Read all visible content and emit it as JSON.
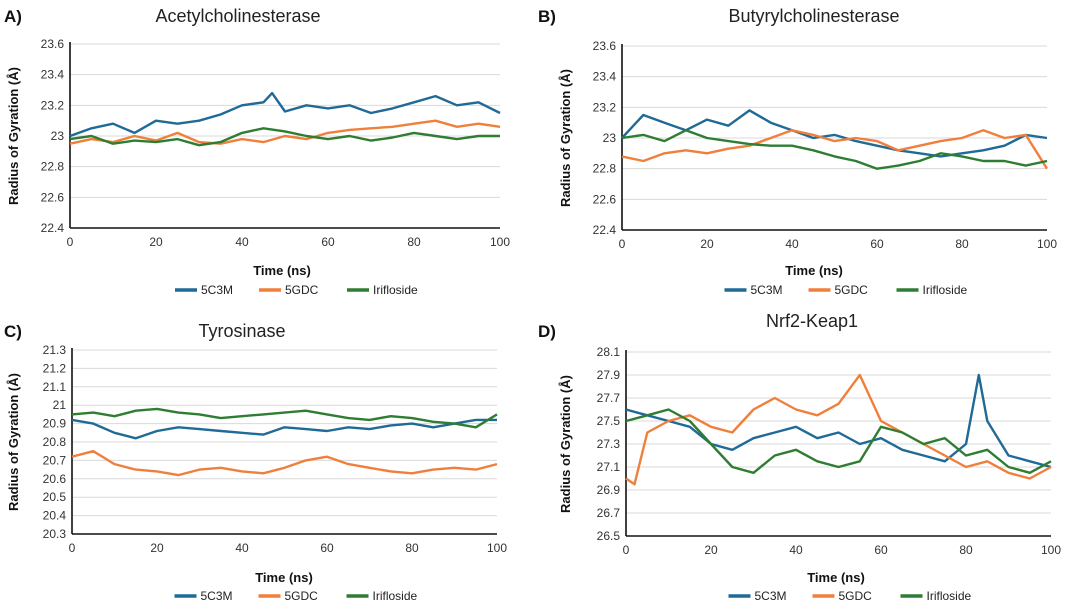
{
  "colors": {
    "s5C3M": "#1f6a96",
    "s5GDC": "#f07f3c",
    "Irifloside": "#2e7d32"
  },
  "chart_data": [
    {
      "type": "line",
      "panel": "A)",
      "title": "Acetylcholinesterase",
      "xlabel": "Time (ns)",
      "ylabel": "Radius of Gyration (Å)",
      "xlim": [
        0,
        100
      ],
      "ylim": [
        22.4,
        23.6
      ],
      "xticks": [
        "0",
        "20",
        "40",
        "60",
        "80",
        "100"
      ],
      "yticks": [
        "22.4",
        "22.6",
        "22.8",
        "23",
        "23.2",
        "23.4",
        "23.6"
      ],
      "grid": true,
      "legend": "bottom-center",
      "series": [
        {
          "name": "5C3M",
          "key": "s5C3M",
          "x": [
            0,
            5,
            10,
            15,
            20,
            25,
            30,
            35,
            40,
            45,
            47,
            50,
            55,
            60,
            65,
            70,
            75,
            80,
            85,
            90,
            95,
            100
          ],
          "values": [
            23.0,
            23.05,
            23.08,
            23.02,
            23.1,
            23.08,
            23.1,
            23.14,
            23.2,
            23.22,
            23.28,
            23.16,
            23.2,
            23.18,
            23.2,
            23.15,
            23.18,
            23.22,
            23.26,
            23.2,
            23.22,
            23.15
          ]
        },
        {
          "name": "5GDC",
          "key": "s5GDC",
          "x": [
            0,
            5,
            10,
            15,
            20,
            25,
            30,
            35,
            40,
            45,
            50,
            55,
            60,
            65,
            70,
            75,
            80,
            85,
            90,
            95,
            100
          ],
          "values": [
            22.95,
            22.98,
            22.96,
            23.0,
            22.97,
            23.02,
            22.96,
            22.95,
            22.98,
            22.96,
            23.0,
            22.98,
            23.02,
            23.04,
            23.05,
            23.06,
            23.08,
            23.1,
            23.06,
            23.08,
            23.06
          ]
        },
        {
          "name": "Irifloside",
          "key": "Irifloside",
          "x": [
            0,
            5,
            10,
            15,
            20,
            25,
            30,
            35,
            40,
            45,
            50,
            55,
            60,
            65,
            70,
            75,
            80,
            85,
            90,
            95,
            100
          ],
          "values": [
            22.98,
            23.0,
            22.95,
            22.97,
            22.96,
            22.98,
            22.94,
            22.96,
            23.02,
            23.05,
            23.03,
            23.0,
            22.98,
            23.0,
            22.97,
            22.99,
            23.02,
            23.0,
            22.98,
            23.0,
            23.0
          ]
        }
      ]
    },
    {
      "type": "line",
      "panel": "B)",
      "title": "Butyrylcholinesterase",
      "xlabel": "Time (ns)",
      "ylabel": "Radius of Gyration (Å)",
      "xlim": [
        0,
        100
      ],
      "ylim": [
        22.4,
        23.6
      ],
      "xticks": [
        "0",
        "20",
        "40",
        "60",
        "80",
        "100"
      ],
      "yticks": [
        "22.4",
        "22.6",
        "22.8",
        "23",
        "23.2",
        "23.4",
        "23.6"
      ],
      "grid": true,
      "legend": "bottom-center",
      "series": [
        {
          "name": "5C3M",
          "key": "s5C3M",
          "x": [
            0,
            5,
            10,
            15,
            20,
            25,
            30,
            35,
            40,
            45,
            50,
            55,
            60,
            65,
            70,
            75,
            80,
            85,
            90,
            95,
            100
          ],
          "values": [
            23.0,
            23.15,
            23.1,
            23.05,
            23.12,
            23.08,
            23.18,
            23.1,
            23.05,
            23.0,
            23.02,
            22.98,
            22.95,
            22.92,
            22.9,
            22.88,
            22.9,
            22.92,
            22.95,
            23.02,
            23.0
          ]
        },
        {
          "name": "5GDC",
          "key": "s5GDC",
          "x": [
            0,
            5,
            10,
            15,
            20,
            25,
            30,
            35,
            40,
            45,
            50,
            55,
            60,
            65,
            70,
            75,
            80,
            85,
            90,
            95,
            100
          ],
          "values": [
            22.88,
            22.85,
            22.9,
            22.92,
            22.9,
            22.93,
            22.95,
            23.0,
            23.05,
            23.02,
            22.98,
            23.0,
            22.98,
            22.92,
            22.95,
            22.98,
            23.0,
            23.05,
            23.0,
            23.02,
            22.8
          ]
        },
        {
          "name": "Irifloside",
          "key": "Irifloside",
          "x": [
            0,
            5,
            10,
            15,
            20,
            25,
            30,
            35,
            40,
            45,
            50,
            55,
            60,
            65,
            70,
            75,
            80,
            85,
            90,
            95,
            100
          ],
          "values": [
            23.0,
            23.02,
            22.98,
            23.05,
            23.0,
            22.98,
            22.96,
            22.95,
            22.95,
            22.92,
            22.88,
            22.85,
            22.8,
            22.82,
            22.85,
            22.9,
            22.88,
            22.85,
            22.85,
            22.82,
            22.85
          ]
        }
      ]
    },
    {
      "type": "line",
      "panel": "C)",
      "title": "Tyrosinase",
      "xlabel": "Time (ns)",
      "ylabel": "Radius of Gyration (Å)",
      "xlim": [
        0,
        100
      ],
      "ylim": [
        20.3,
        21.3
      ],
      "xticks": [
        "0",
        "20",
        "40",
        "60",
        "80",
        "100"
      ],
      "yticks": [
        "20.3",
        "20.4",
        "20.5",
        "20.6",
        "20.7",
        "20.8",
        "20.9",
        "21",
        "21.1",
        "21.2",
        "21.3"
      ],
      "grid": true,
      "legend": "bottom-center",
      "series": [
        {
          "name": "5C3M",
          "key": "s5C3M",
          "x": [
            0,
            5,
            10,
            15,
            20,
            25,
            30,
            35,
            40,
            45,
            50,
            55,
            60,
            65,
            70,
            75,
            80,
            85,
            90,
            95,
            100
          ],
          "values": [
            20.92,
            20.9,
            20.85,
            20.82,
            20.86,
            20.88,
            20.87,
            20.86,
            20.85,
            20.84,
            20.88,
            20.87,
            20.86,
            20.88,
            20.87,
            20.89,
            20.9,
            20.88,
            20.9,
            20.92,
            20.92
          ]
        },
        {
          "name": "5GDC",
          "key": "s5GDC",
          "x": [
            0,
            5,
            10,
            15,
            20,
            25,
            30,
            35,
            40,
            45,
            50,
            55,
            60,
            65,
            70,
            75,
            80,
            85,
            90,
            95,
            100
          ],
          "values": [
            20.72,
            20.75,
            20.68,
            20.65,
            20.64,
            20.62,
            20.65,
            20.66,
            20.64,
            20.63,
            20.66,
            20.7,
            20.72,
            20.68,
            20.66,
            20.64,
            20.63,
            20.65,
            20.66,
            20.65,
            20.68
          ]
        },
        {
          "name": "Irifloside",
          "key": "Irifloside",
          "x": [
            0,
            5,
            10,
            15,
            20,
            25,
            30,
            35,
            40,
            45,
            50,
            55,
            60,
            65,
            70,
            75,
            80,
            85,
            90,
            95,
            100
          ],
          "values": [
            20.95,
            20.96,
            20.94,
            20.97,
            20.98,
            20.96,
            20.95,
            20.93,
            20.94,
            20.95,
            20.96,
            20.97,
            20.95,
            20.93,
            20.92,
            20.94,
            20.93,
            20.91,
            20.9,
            20.88,
            20.95
          ]
        }
      ]
    },
    {
      "type": "line",
      "panel": "D)",
      "title": "Nrf2-Keap1",
      "xlabel": "Time (ns)",
      "ylabel": "Radius of Gyration (Å)",
      "xlim": [
        0,
        100
      ],
      "ylim": [
        26.5,
        28.1
      ],
      "xticks": [
        "0",
        "20",
        "40",
        "60",
        "80",
        "100"
      ],
      "yticks": [
        "26.5",
        "26.7",
        "26.9",
        "27.1",
        "27.3",
        "27.5",
        "27.7",
        "27.9",
        "28.1"
      ],
      "grid": true,
      "legend": "bottom-center",
      "series": [
        {
          "name": "5C3M",
          "key": "s5C3M",
          "x": [
            0,
            5,
            10,
            15,
            20,
            25,
            30,
            35,
            40,
            45,
            50,
            55,
            60,
            65,
            70,
            75,
            80,
            83,
            85,
            90,
            95,
            100
          ],
          "values": [
            27.6,
            27.55,
            27.5,
            27.45,
            27.3,
            27.25,
            27.35,
            27.4,
            27.45,
            27.35,
            27.4,
            27.3,
            27.35,
            27.25,
            27.2,
            27.15,
            27.3,
            27.9,
            27.5,
            27.2,
            27.15,
            27.1
          ]
        },
        {
          "name": "5GDC",
          "key": "s5GDC",
          "x": [
            0,
            2,
            5,
            10,
            15,
            20,
            25,
            30,
            35,
            40,
            45,
            50,
            55,
            60,
            65,
            70,
            75,
            80,
            85,
            90,
            95,
            100
          ],
          "values": [
            27.0,
            26.95,
            27.4,
            27.5,
            27.55,
            27.45,
            27.4,
            27.6,
            27.7,
            27.6,
            27.55,
            27.65,
            27.9,
            27.5,
            27.4,
            27.3,
            27.2,
            27.1,
            27.15,
            27.05,
            27.0,
            27.1
          ]
        },
        {
          "name": "Irifloside",
          "key": "Irifloside",
          "x": [
            0,
            5,
            10,
            15,
            20,
            25,
            30,
            35,
            40,
            45,
            50,
            55,
            60,
            65,
            70,
            75,
            80,
            85,
            90,
            95,
            100
          ],
          "values": [
            27.5,
            27.55,
            27.6,
            27.5,
            27.3,
            27.1,
            27.05,
            27.2,
            27.25,
            27.15,
            27.1,
            27.15,
            27.45,
            27.4,
            27.3,
            27.35,
            27.2,
            27.25,
            27.1,
            27.05,
            27.15
          ]
        }
      ]
    }
  ]
}
